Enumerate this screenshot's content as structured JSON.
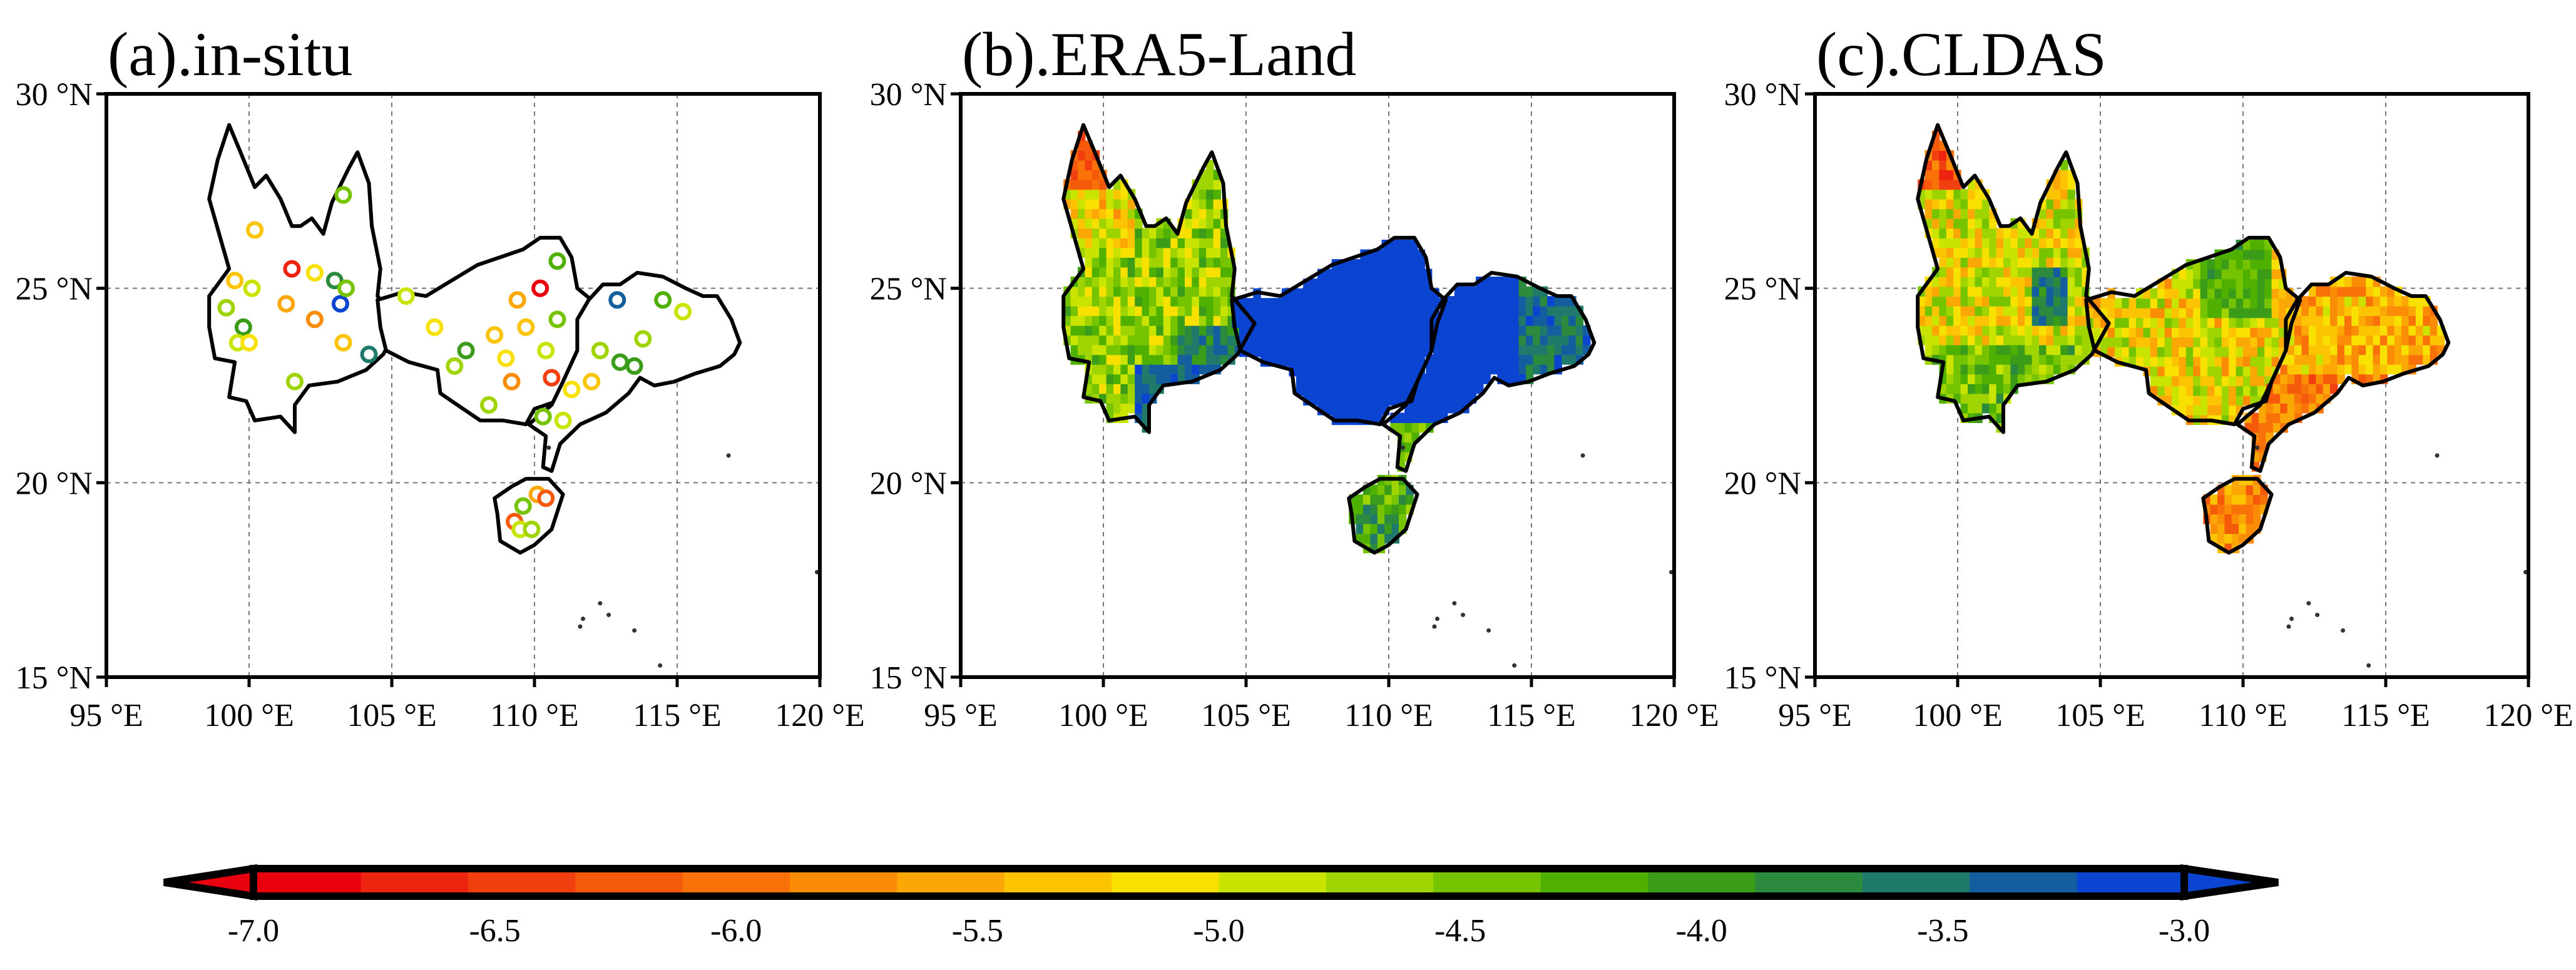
{
  "panels": [
    {
      "title": "(a).in-situ",
      "kind": "stations"
    },
    {
      "title": "(b).ERA5-Land",
      "kind": "field"
    },
    {
      "title": "(c).CLDAS",
      "kind": "field"
    }
  ],
  "axes": {
    "lon_range": [
      95,
      120
    ],
    "lat_range": [
      15,
      30
    ],
    "lon_ticks": [
      "95 °E",
      "100 °E",
      "105 °E",
      "110 °E",
      "115 °E",
      "120 °E"
    ],
    "lat_ticks": [
      "30 °N",
      "25 °N",
      "20 °N",
      "15 °N"
    ],
    "grid": "dashed at each tick"
  },
  "colorbar": {
    "min": -7.0,
    "max": -3.0,
    "labels": [
      "-7.0",
      "-6.5",
      "-6.0",
      "-5.5",
      "-5.0",
      "-4.5",
      "-4.0",
      "-3.5",
      "-3.0"
    ],
    "colors": [
      "#e8000f",
      "#ed2410",
      "#f23f0f",
      "#f55a0b",
      "#f87209",
      "#fa8c06",
      "#fba705",
      "#fcc403",
      "#f8e100",
      "#c9e400",
      "#9fd400",
      "#76c300",
      "#4fb000",
      "#3a9c18",
      "#2b8a3e",
      "#1f7a6c",
      "#145ea0",
      "#0a44d0"
    ],
    "orientation": "horizontal",
    "extend": "both"
  },
  "chart_data": {
    "type": "scatter",
    "panel": "(a).in-situ",
    "x_label": "longitude",
    "y_label": "latitude",
    "stations": [
      {
        "lon": 100.2,
        "lat": 26.5,
        "v": -5.4
      },
      {
        "lon": 101.5,
        "lat": 25.5,
        "v": -6.6
      },
      {
        "lon": 102.3,
        "lat": 25.4,
        "v": -5.2
      },
      {
        "lon": 103.0,
        "lat": 25.2,
        "v": -3.8
      },
      {
        "lon": 103.2,
        "lat": 24.6,
        "v": -3.2
      },
      {
        "lon": 103.4,
        "lat": 25.0,
        "v": -4.5
      },
      {
        "lon": 99.5,
        "lat": 25.2,
        "v": -5.4
      },
      {
        "lon": 100.1,
        "lat": 25.0,
        "v": -5.0
      },
      {
        "lon": 99.2,
        "lat": 24.5,
        "v": -4.6
      },
      {
        "lon": 99.8,
        "lat": 24.0,
        "v": -4.1
      },
      {
        "lon": 101.3,
        "lat": 24.6,
        "v": -5.6
      },
      {
        "lon": 102.3,
        "lat": 24.2,
        "v": -5.8
      },
      {
        "lon": 103.3,
        "lat": 23.6,
        "v": -5.3
      },
      {
        "lon": 104.2,
        "lat": 23.3,
        "v": -3.6
      },
      {
        "lon": 99.6,
        "lat": 23.6,
        "v": -4.8
      },
      {
        "lon": 100.0,
        "lat": 23.6,
        "v": -5.2
      },
      {
        "lon": 101.6,
        "lat": 22.6,
        "v": -4.7
      },
      {
        "lon": 103.3,
        "lat": 27.4,
        "v": -4.4
      },
      {
        "lon": 105.5,
        "lat": 24.8,
        "v": -5.0
      },
      {
        "lon": 106.5,
        "lat": 24.0,
        "v": -5.1
      },
      {
        "lon": 107.2,
        "lat": 23.0,
        "v": -4.6
      },
      {
        "lon": 107.6,
        "lat": 23.4,
        "v": -4.0
      },
      {
        "lon": 108.6,
        "lat": 23.8,
        "v": -5.3
      },
      {
        "lon": 109.4,
        "lat": 24.7,
        "v": -5.6
      },
      {
        "lon": 109.0,
        "lat": 23.2,
        "v": -5.1
      },
      {
        "lon": 110.2,
        "lat": 25.0,
        "v": -6.8
      },
      {
        "lon": 110.8,
        "lat": 24.2,
        "v": -4.5
      },
      {
        "lon": 109.7,
        "lat": 24.0,
        "v": -5.4
      },
      {
        "lon": 110.4,
        "lat": 23.4,
        "v": -4.8
      },
      {
        "lon": 110.6,
        "lat": 22.7,
        "v": -6.5
      },
      {
        "lon": 111.3,
        "lat": 22.4,
        "v": -5.1
      },
      {
        "lon": 108.4,
        "lat": 22.0,
        "v": -4.6
      },
      {
        "lon": 109.2,
        "lat": 22.6,
        "v": -5.7
      },
      {
        "lon": 110.8,
        "lat": 25.7,
        "v": -4.3
      },
      {
        "lon": 112.3,
        "lat": 23.4,
        "v": -4.7
      },
      {
        "lon": 112.9,
        "lat": 24.7,
        "v": -3.4
      },
      {
        "lon": 113.5,
        "lat": 23.0,
        "v": -3.9
      },
      {
        "lon": 114.5,
        "lat": 24.7,
        "v": -4.2
      },
      {
        "lon": 115.2,
        "lat": 24.4,
        "v": -4.9
      },
      {
        "lon": 112.0,
        "lat": 22.6,
        "v": -5.3
      },
      {
        "lon": 113.0,
        "lat": 23.1,
        "v": -4.1
      },
      {
        "lon": 110.3,
        "lat": 21.7,
        "v": -4.5
      },
      {
        "lon": 111.0,
        "lat": 21.6,
        "v": -5.0
      },
      {
        "lon": 113.8,
        "lat": 23.7,
        "v": -4.6
      },
      {
        "lon": 109.3,
        "lat": 19.0,
        "v": -6.3
      },
      {
        "lon": 109.5,
        "lat": 18.8,
        "v": -5.0
      },
      {
        "lon": 110.1,
        "lat": 19.7,
        "v": -5.5
      },
      {
        "lon": 110.4,
        "lat": 19.6,
        "v": -6.2
      },
      {
        "lon": 109.6,
        "lat": 19.4,
        "v": -4.4
      },
      {
        "lon": 109.9,
        "lat": 18.8,
        "v": -4.7
      }
    ]
  }
}
